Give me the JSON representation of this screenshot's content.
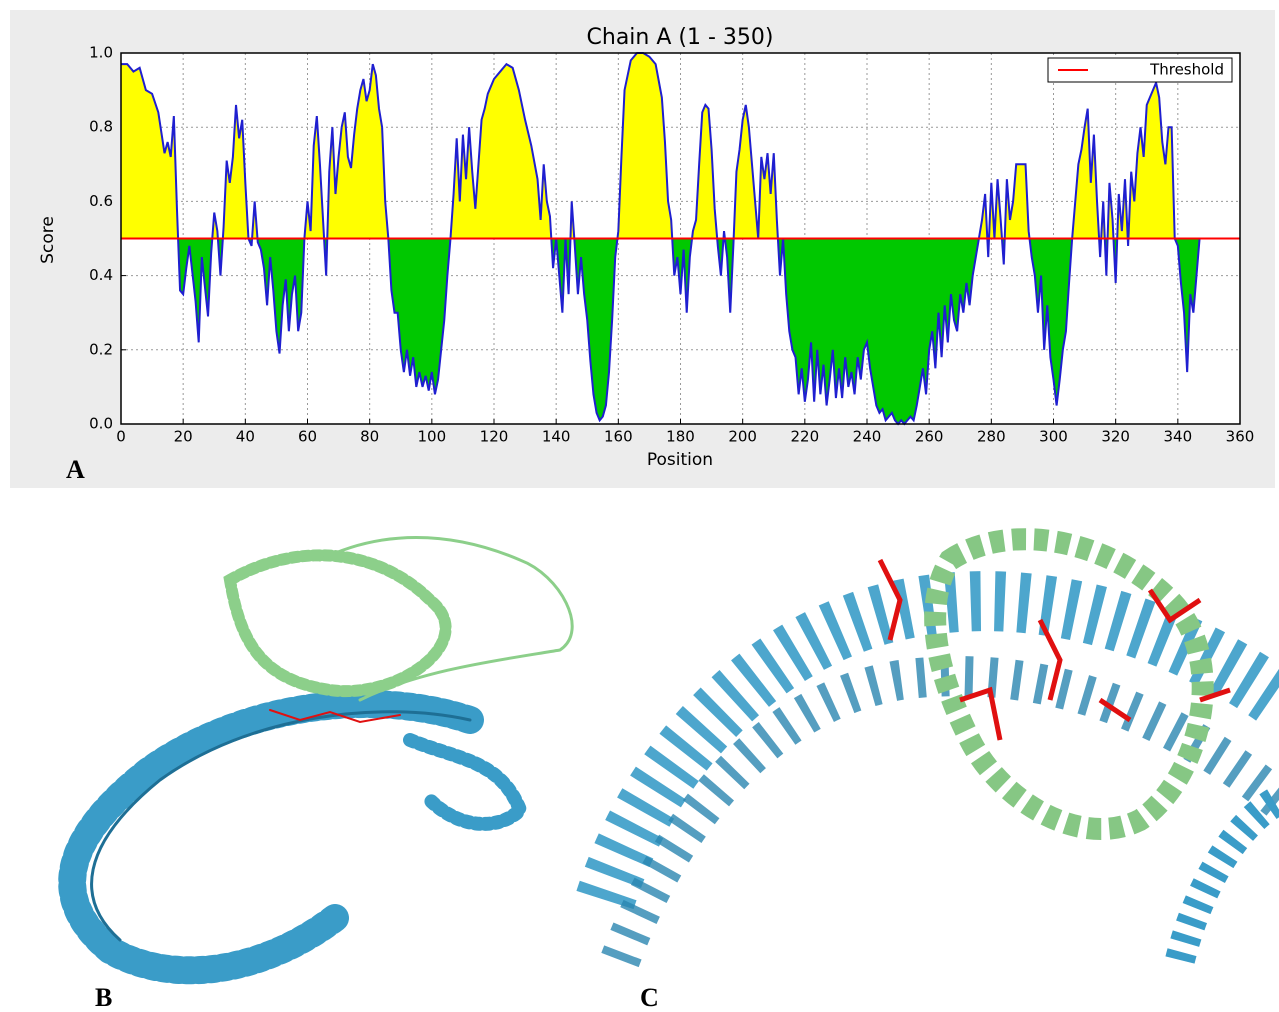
{
  "chart_data": {
    "type": "area-threshold",
    "title": "Chain A (1 - 350)",
    "x_label": "Position",
    "y_label": "Score",
    "x": [
      0,
      2,
      4,
      6,
      8,
      10,
      12,
      14,
      15,
      16,
      17,
      18,
      19,
      20,
      21,
      22,
      24,
      25,
      26,
      28,
      29,
      30,
      31,
      32,
      33,
      34,
      35,
      36,
      37,
      38,
      39,
      40,
      41,
      42,
      43,
      44,
      45,
      46,
      47,
      48,
      49,
      50,
      51,
      52,
      53,
      54,
      55,
      56,
      57,
      58,
      59,
      60,
      61,
      62,
      63,
      64,
      65,
      66,
      67,
      68,
      69,
      70,
      71,
      72,
      73,
      74,
      75,
      76,
      77,
      78,
      79,
      80,
      81,
      82,
      83,
      84,
      85,
      86,
      87,
      88,
      89,
      90,
      91,
      92,
      93,
      94,
      95,
      96,
      97,
      98,
      99,
      100,
      101,
      102,
      103,
      104,
      105,
      106,
      107,
      108,
      109,
      110,
      111,
      112,
      113,
      114,
      115,
      116,
      117,
      118,
      120,
      122,
      124,
      126,
      128,
      130,
      132,
      134,
      135,
      136,
      137,
      138,
      139,
      140,
      141,
      142,
      143,
      144,
      145,
      146,
      147,
      148,
      149,
      150,
      151,
      152,
      153,
      154,
      155,
      156,
      157,
      158,
      159,
      160,
      161,
      162,
      164,
      166,
      168,
      170,
      172,
      174,
      175,
      176,
      177,
      178,
      179,
      180,
      181,
      182,
      183,
      184,
      185,
      186,
      187,
      188,
      189,
      190,
      191,
      192,
      193,
      194,
      195,
      196,
      197,
      198,
      199,
      200,
      201,
      202,
      203,
      204,
      205,
      206,
      207,
      208,
      209,
      210,
      211,
      212,
      213,
      214,
      215,
      216,
      217,
      218,
      219,
      220,
      221,
      222,
      223,
      224,
      225,
      226,
      227,
      228,
      229,
      230,
      231,
      232,
      233,
      234,
      235,
      236,
      237,
      238,
      239,
      240,
      241,
      242,
      243,
      244,
      245,
      246,
      247,
      248,
      249,
      250,
      251,
      252,
      253,
      254,
      255,
      256,
      257,
      258,
      259,
      260,
      261,
      262,
      263,
      264,
      265,
      266,
      267,
      268,
      269,
      270,
      271,
      272,
      273,
      274,
      275,
      276,
      277,
      278,
      279,
      280,
      281,
      282,
      283,
      284,
      285,
      286,
      287,
      288,
      289,
      290,
      291,
      292,
      293,
      294,
      295,
      296,
      297,
      298,
      299,
      300,
      301,
      302,
      303,
      304,
      305,
      306,
      307,
      308,
      309,
      310,
      311,
      312,
      313,
      314,
      315,
      316,
      317,
      318,
      319,
      320,
      321,
      322,
      323,
      324,
      325,
      326,
      327,
      328,
      329,
      330,
      331,
      332,
      333,
      334,
      335,
      336,
      337,
      338,
      339,
      340,
      341,
      342,
      343,
      344,
      345,
      346,
      347
    ],
    "values": [
      0.97,
      0.97,
      0.95,
      0.96,
      0.9,
      0.89,
      0.84,
      0.73,
      0.76,
      0.72,
      0.83,
      0.58,
      0.36,
      0.35,
      0.42,
      0.48,
      0.33,
      0.22,
      0.45,
      0.29,
      0.46,
      0.57,
      0.52,
      0.4,
      0.53,
      0.71,
      0.65,
      0.72,
      0.86,
      0.77,
      0.82,
      0.65,
      0.5,
      0.48,
      0.6,
      0.49,
      0.47,
      0.42,
      0.32,
      0.45,
      0.36,
      0.25,
      0.19,
      0.32,
      0.39,
      0.25,
      0.35,
      0.4,
      0.25,
      0.3,
      0.5,
      0.6,
      0.52,
      0.75,
      0.83,
      0.7,
      0.55,
      0.4,
      0.68,
      0.8,
      0.62,
      0.72,
      0.8,
      0.84,
      0.72,
      0.69,
      0.78,
      0.85,
      0.9,
      0.93,
      0.87,
      0.9,
      0.97,
      0.94,
      0.85,
      0.8,
      0.6,
      0.5,
      0.36,
      0.3,
      0.3,
      0.2,
      0.14,
      0.2,
      0.13,
      0.18,
      0.1,
      0.14,
      0.1,
      0.13,
      0.09,
      0.14,
      0.08,
      0.12,
      0.2,
      0.28,
      0.4,
      0.5,
      0.62,
      0.77,
      0.6,
      0.78,
      0.66,
      0.8,
      0.68,
      0.58,
      0.7,
      0.82,
      0.85,
      0.89,
      0.93,
      0.95,
      0.97,
      0.96,
      0.9,
      0.82,
      0.75,
      0.66,
      0.55,
      0.7,
      0.6,
      0.56,
      0.42,
      0.5,
      0.4,
      0.3,
      0.5,
      0.35,
      0.6,
      0.48,
      0.35,
      0.45,
      0.35,
      0.28,
      0.17,
      0.08,
      0.03,
      0.01,
      0.02,
      0.05,
      0.14,
      0.28,
      0.45,
      0.52,
      0.72,
      0.9,
      0.98,
      1.0,
      1.0,
      0.99,
      0.97,
      0.88,
      0.76,
      0.6,
      0.55,
      0.4,
      0.45,
      0.35,
      0.47,
      0.3,
      0.45,
      0.52,
      0.55,
      0.7,
      0.84,
      0.86,
      0.85,
      0.74,
      0.58,
      0.48,
      0.4,
      0.52,
      0.45,
      0.3,
      0.48,
      0.68,
      0.74,
      0.82,
      0.86,
      0.8,
      0.7,
      0.6,
      0.5,
      0.72,
      0.66,
      0.73,
      0.62,
      0.73,
      0.55,
      0.4,
      0.5,
      0.35,
      0.25,
      0.2,
      0.18,
      0.08,
      0.15,
      0.06,
      0.12,
      0.22,
      0.06,
      0.2,
      0.08,
      0.16,
      0.05,
      0.12,
      0.2,
      0.07,
      0.15,
      0.07,
      0.18,
      0.1,
      0.14,
      0.08,
      0.18,
      0.12,
      0.2,
      0.22,
      0.15,
      0.1,
      0.05,
      0.03,
      0.04,
      0.01,
      0.02,
      0.03,
      0.01,
      0.0,
      0.01,
      0.0,
      0.01,
      0.02,
      0.01,
      0.05,
      0.1,
      0.15,
      0.08,
      0.2,
      0.25,
      0.15,
      0.3,
      0.18,
      0.32,
      0.22,
      0.35,
      0.28,
      0.25,
      0.35,
      0.3,
      0.38,
      0.32,
      0.4,
      0.45,
      0.5,
      0.55,
      0.62,
      0.45,
      0.65,
      0.5,
      0.66,
      0.55,
      0.43,
      0.66,
      0.55,
      0.6,
      0.7,
      0.7,
      0.7,
      0.7,
      0.52,
      0.45,
      0.4,
      0.3,
      0.4,
      0.2,
      0.32,
      0.18,
      0.12,
      0.05,
      0.12,
      0.2,
      0.25,
      0.38,
      0.5,
      0.6,
      0.7,
      0.74,
      0.8,
      0.85,
      0.65,
      0.78,
      0.6,
      0.45,
      0.6,
      0.4,
      0.65,
      0.55,
      0.38,
      0.62,
      0.52,
      0.66,
      0.48,
      0.68,
      0.6,
      0.73,
      0.8,
      0.72,
      0.86,
      0.88,
      0.9,
      0.92,
      0.88,
      0.76,
      0.7,
      0.8,
      0.8,
      0.5,
      0.48,
      0.38,
      0.3,
      0.14,
      0.35,
      0.3,
      0.4,
      0.5
    ],
    "color": "#1f1fd0",
    "fill_above": "#ffff00",
    "fill_below": "#00c800",
    "threshold": {
      "value": 0.5,
      "label": "Threshold",
      "color": "#ff0000"
    },
    "xlim": [
      0,
      360
    ],
    "xticks": [
      0,
      20,
      40,
      60,
      80,
      100,
      120,
      140,
      160,
      180,
      200,
      220,
      240,
      260,
      280,
      300,
      320,
      340,
      360
    ],
    "ylim": [
      0,
      1
    ],
    "yticks": [
      {
        "value": 0,
        "label": "0.0"
      },
      0.2,
      0.4,
      0.6,
      0.8,
      {
        "value": 1,
        "label": "1.0"
      }
    ],
    "grid": true,
    "legend": "upper right"
  },
  "panel_labels": [
    "A",
    "B",
    "C"
  ]
}
